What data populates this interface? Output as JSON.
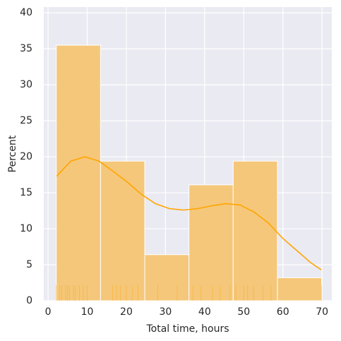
{
  "chart_data": {
    "type": "histogram",
    "xlabel": "Total time, hours",
    "ylabel": "Percent",
    "bins": [
      2.1,
      13.4,
      24.7,
      36.0,
      47.3,
      58.6,
      69.9
    ],
    "values": [
      35.5,
      19.4,
      6.4,
      16.1,
      19.4,
      3.2
    ],
    "color": "#f5c77a",
    "line_color": "orange",
    "kde": {
      "x": [
        2.2,
        5.8,
        9.4,
        13.0,
        16.6,
        20.2,
        23.8,
        27.4,
        31.0,
        34.6,
        38.2,
        41.9,
        45.5,
        49.1,
        52.7,
        56.3,
        59.9,
        63.5,
        67.1,
        69.8
      ],
      "y": [
        17.3,
        19.4,
        20.0,
        19.4,
        18.0,
        16.5,
        14.8,
        13.5,
        12.8,
        12.6,
        12.8,
        13.2,
        13.5,
        13.3,
        12.3,
        10.8,
        8.7,
        7.0,
        5.3,
        4.3
      ]
    },
    "rug": [
      2.1,
      3,
      3.5,
      4.5,
      5,
      5.5,
      6.5,
      7,
      8,
      9,
      10,
      16.5,
      17.5,
      18.5,
      20,
      21.5,
      23,
      28,
      33,
      37,
      39,
      42,
      44,
      46.5,
      48,
      50,
      51,
      52.5,
      55,
      57,
      69.9
    ],
    "xlim": [
      -1.1,
      72.5
    ],
    "ylim": [
      0,
      40.8
    ],
    "xticks": [
      0,
      10,
      20,
      30,
      40,
      50,
      60,
      70
    ],
    "yticks": [
      0,
      5,
      10,
      15,
      20,
      25,
      30,
      35,
      40
    ],
    "grid": true
  }
}
